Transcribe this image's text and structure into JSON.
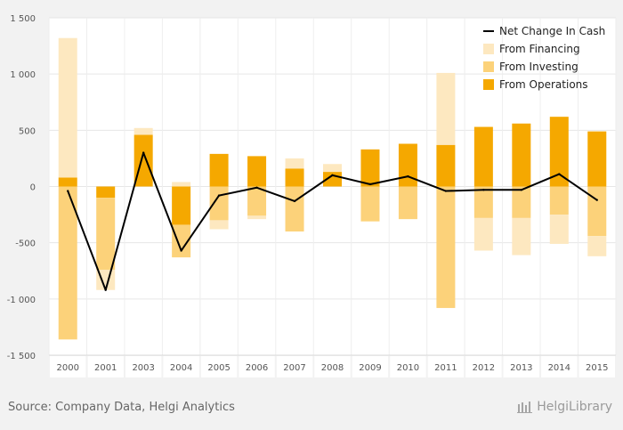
{
  "chart_data": {
    "type": "bar",
    "stacked": true,
    "categories": [
      "2000",
      "2001",
      "2003",
      "2004",
      "2005",
      "2006",
      "2007",
      "2008",
      "2009",
      "2010",
      "2011",
      "2012",
      "2013",
      "2014",
      "2015"
    ],
    "series": [
      {
        "name": "From Operations",
        "color": "#f5a800",
        "values": [
          80,
          -100,
          460,
          -340,
          290,
          270,
          160,
          130,
          330,
          380,
          370,
          530,
          560,
          620,
          490
        ]
      },
      {
        "name": "From Investing",
        "color": "#fcd27a",
        "values": [
          -1360,
          -640,
          0,
          -290,
          -300,
          -260,
          -400,
          0,
          -310,
          -290,
          -1080,
          -280,
          -280,
          -250,
          -440
        ]
      },
      {
        "name": "From Financing",
        "color": "#fde8c0",
        "values": [
          1240,
          -180,
          60,
          40,
          -80,
          -30,
          90,
          70,
          0,
          0,
          640,
          -290,
          -330,
          -260,
          -180
        ]
      },
      {
        "name": "Net Change In Cash",
        "type": "line",
        "color": "#000000",
        "values": [
          -40,
          -920,
          300,
          -570,
          -80,
          -10,
          -130,
          100,
          20,
          90,
          -40,
          -30,
          -30,
          110,
          -120
        ]
      }
    ],
    "legend_order": [
      "Net Change In Cash",
      "From Financing",
      "From Investing",
      "From Operations"
    ],
    "ylim": [
      -1500,
      1500
    ],
    "yticks": [
      -1500,
      -1000,
      -500,
      0,
      500,
      1000,
      1500
    ],
    "ytick_labels": [
      "-1 500",
      "-1 000",
      "-500",
      "0",
      "500",
      "1 000",
      "1 500"
    ],
    "grid": true,
    "legend_position": "top-right"
  },
  "footer": {
    "source": "Source: Company Data, Helgi Analytics",
    "brand": "HelgiLibrary"
  }
}
